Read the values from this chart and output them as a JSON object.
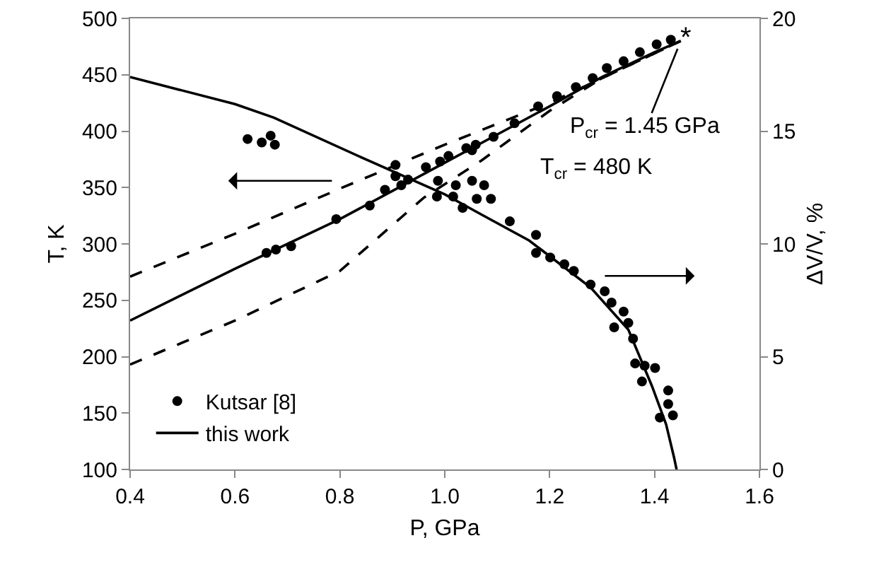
{
  "chart_data": {
    "type": "line",
    "xlabel": "P, GPa",
    "ylabel": "T, K",
    "y2label": "ΔV/V, %",
    "xlim": [
      0.4,
      1.6
    ],
    "xticks": [
      {
        "value": 0.4,
        "label": "0.4"
      },
      {
        "value": 0.6,
        "label": "0.6"
      },
      {
        "value": 0.8,
        "label": "0.8"
      },
      {
        "value": 1.0,
        "label": "1.0"
      },
      {
        "value": 1.2,
        "label": "1.2"
      },
      {
        "value": 1.4,
        "label": "1.4"
      },
      {
        "value": 1.6,
        "label": "1.6"
      }
    ],
    "ylim": [
      100,
      500
    ],
    "yticks": [
      100,
      150,
      200,
      250,
      300,
      350,
      400,
      450,
      500
    ],
    "y2lim": [
      0,
      20
    ],
    "y2ticks": [
      0,
      5,
      10,
      15,
      20
    ],
    "grid": false,
    "legend": "bottom left",
    "annotations": [
      {
        "text": "P$_{cr}$ = 1.45 GPa",
        "x": 1.45,
        "y": 480
      },
      "T$_{cr}$ = 480 K",
      {
        "text": "*",
        "x": 1.45,
        "y": 480
      }
    ],
    "series": [
      {
        "name": "Kutsar [8]",
        "type": "scatter",
        "marker": "circle",
        "color": "#000000",
        "x": [
          0.66,
          0.678,
          0.707,
          0.793,
          0.857,
          0.886,
          0.906,
          0.93,
          0.964,
          0.991,
          1.007,
          1.041,
          1.052,
          1.059,
          1.093,
          1.133,
          1.178,
          1.214,
          1.25,
          1.282,
          1.309,
          1.341,
          1.372,
          1.404,
          1.431
        ],
        "values": [
          292,
          295,
          298,
          322,
          334,
          348,
          360,
          357,
          368,
          373,
          378,
          385,
          383,
          388,
          395,
          407,
          422,
          431,
          439,
          447,
          456,
          462,
          470,
          477,
          481
        ]
      },
      {
        "type": "scatter",
        "marker": "circle",
        "axis": "y2",
        "color": "#000000",
        "x": [
          0.624,
          0.651,
          0.668,
          0.676,
          0.906,
          0.917,
          0.987,
          0.985,
          1.021,
          1.016,
          1.034,
          1.061,
          1.052,
          1.075,
          1.088,
          1.124,
          1.174,
          1.174,
          1.201,
          1.228,
          1.246,
          1.278,
          1.305,
          1.318,
          1.341,
          1.35,
          1.323,
          1.359,
          1.363,
          1.381,
          1.376,
          1.401,
          1.426,
          1.426,
          1.41,
          1.435
        ],
        "values": [
          14.65,
          14.5,
          14.8,
          14.4,
          13.5,
          12.6,
          12.8,
          12.1,
          12.6,
          12.1,
          11.6,
          12.0,
          12.8,
          12.6,
          12.0,
          11.0,
          10.4,
          9.6,
          9.4,
          9.1,
          8.8,
          8.2,
          7.9,
          7.4,
          7.0,
          6.5,
          6.3,
          5.8,
          4.7,
          4.6,
          3.9,
          4.5,
          3.5,
          2.9,
          2.3,
          2.4
        ]
      },
      {
        "name": "this work",
        "line_style": "solid",
        "color": "#000000",
        "x": [
          0.4,
          0.6,
          0.8,
          0.9,
          1.0,
          1.1,
          1.2,
          1.3,
          1.4,
          1.45
        ],
        "values": [
          232,
          278,
          322,
          347,
          372,
          397,
          422,
          448,
          470,
          480
        ]
      },
      {
        "line_style": "dashed",
        "color": "#000000",
        "x": [
          0.4,
          0.6,
          0.8,
          1.0,
          1.2,
          1.4,
          1.45
        ],
        "values": [
          271,
          309,
          349,
          388,
          425,
          469,
          480
        ]
      },
      {
        "line_style": "dashed",
        "color": "#000000",
        "x": [
          0.4,
          0.6,
          0.8,
          0.96,
          1.07,
          1.2,
          1.3,
          1.4,
          1.45
        ],
        "values": [
          193,
          232,
          276,
          341,
          374,
          418,
          447,
          469,
          480
        ]
      },
      {
        "line_style": "solid",
        "axis": "y2",
        "color": "#000000",
        "x": [
          0.4,
          0.6,
          0.674,
          0.854,
          1.0,
          1.07,
          1.161,
          1.278,
          1.35,
          1.395,
          1.422,
          1.437,
          1.442
        ],
        "values": [
          17.4,
          16.2,
          15.6,
          13.7,
          12.2,
          11.3,
          10.15,
          8.07,
          6.2,
          3.7,
          2.0,
          0.55,
          0
        ]
      }
    ]
  }
}
